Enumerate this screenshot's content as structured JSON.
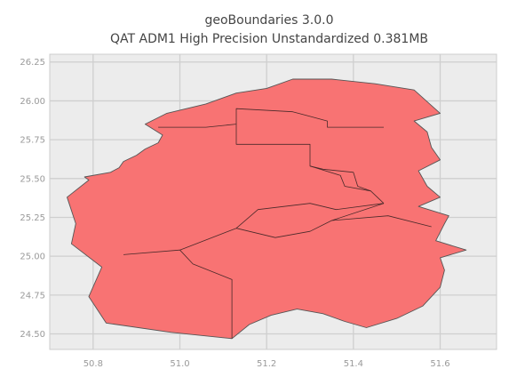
{
  "chart_data": {
    "type": "map",
    "title": "geoBoundaries 3.0.0",
    "subtitle": "QAT ADM1 High Precision Unstandardized 0.381MB",
    "xlim": [
      50.7,
      51.73
    ],
    "ylim": [
      24.4,
      26.3
    ],
    "x_ticks": [
      50.8,
      51.0,
      51.2,
      51.4,
      51.6
    ],
    "y_ticks": [
      24.5,
      24.75,
      25.0,
      25.25,
      25.5,
      25.75,
      26.0,
      26.25
    ],
    "x_tick_labels": [
      "50.8",
      "51.0",
      "51.2",
      "51.4",
      "51.6"
    ],
    "y_tick_labels": [
      "24.50",
      "24.75",
      "25.00",
      "25.25",
      "25.50",
      "25.75",
      "26.00",
      "26.25"
    ],
    "grid": true,
    "fill_color": "#f87373",
    "edge_color": "#555555",
    "background_color": "#ececec",
    "outline": [
      [
        51.12,
        24.47
      ],
      [
        50.98,
        24.51
      ],
      [
        50.83,
        24.57
      ],
      [
        50.79,
        24.74
      ],
      [
        50.82,
        24.93
      ],
      [
        50.75,
        25.08
      ],
      [
        50.76,
        25.21
      ],
      [
        50.74,
        25.38
      ],
      [
        50.79,
        25.49
      ],
      [
        50.78,
        25.51
      ],
      [
        50.84,
        25.54
      ],
      [
        50.86,
        25.57
      ],
      [
        50.87,
        25.61
      ],
      [
        50.9,
        25.65
      ],
      [
        50.92,
        25.69
      ],
      [
        50.95,
        25.73
      ],
      [
        50.96,
        25.78
      ],
      [
        50.92,
        25.85
      ],
      [
        50.97,
        25.92
      ],
      [
        51.06,
        25.98
      ],
      [
        51.13,
        26.05
      ],
      [
        51.2,
        26.08
      ],
      [
        51.26,
        26.14
      ],
      [
        51.35,
        26.14
      ],
      [
        51.45,
        26.11
      ],
      [
        51.54,
        26.07
      ],
      [
        51.58,
        25.97
      ],
      [
        51.6,
        25.92
      ],
      [
        51.54,
        25.87
      ],
      [
        51.57,
        25.8
      ],
      [
        51.58,
        25.7
      ],
      [
        51.6,
        25.62
      ],
      [
        51.55,
        25.55
      ],
      [
        51.57,
        25.45
      ],
      [
        51.6,
        25.38
      ],
      [
        51.55,
        25.32
      ],
      [
        51.62,
        25.26
      ],
      [
        51.61,
        25.21
      ],
      [
        51.59,
        25.1
      ],
      [
        51.66,
        25.04
      ],
      [
        51.6,
        24.99
      ],
      [
        51.61,
        24.91
      ],
      [
        51.6,
        24.8
      ],
      [
        51.56,
        24.68
      ],
      [
        51.5,
        24.6
      ],
      [
        51.43,
        24.54
      ],
      [
        51.38,
        24.58
      ],
      [
        51.33,
        24.63
      ],
      [
        51.27,
        24.66
      ],
      [
        51.21,
        24.62
      ],
      [
        51.16,
        24.56
      ],
      [
        51.12,
        24.47
      ]
    ],
    "boundaries": [
      [
        [
          50.95,
          25.83
        ],
        [
          51.06,
          25.83
        ],
        [
          51.13,
          25.85
        ],
        [
          51.13,
          25.95
        ],
        [
          51.26,
          25.93
        ],
        [
          51.3,
          25.9
        ],
        [
          51.34,
          25.87
        ],
        [
          51.34,
          25.83
        ],
        [
          51.47,
          25.83
        ]
      ],
      [
        [
          51.13,
          25.85
        ],
        [
          51.13,
          25.72
        ],
        [
          51.3,
          25.72
        ],
        [
          51.3,
          25.58
        ],
        [
          51.37,
          25.52
        ],
        [
          51.38,
          25.45
        ],
        [
          51.44,
          25.42
        ],
        [
          51.47,
          25.34
        ]
      ],
      [
        [
          51.3,
          25.58
        ],
        [
          51.33,
          25.56
        ],
        [
          51.4,
          25.54
        ],
        [
          51.41,
          25.45
        ],
        [
          51.44,
          25.42
        ]
      ],
      [
        [
          51.47,
          25.34
        ],
        [
          51.36,
          25.3
        ],
        [
          51.3,
          25.34
        ],
        [
          51.18,
          25.3
        ],
        [
          51.13,
          25.18
        ],
        [
          51.0,
          25.04
        ],
        [
          50.87,
          25.01
        ]
      ],
      [
        [
          51.0,
          25.04
        ],
        [
          51.03,
          24.95
        ],
        [
          51.12,
          24.85
        ],
        [
          51.12,
          24.47
        ]
      ],
      [
        [
          51.13,
          25.18
        ],
        [
          51.22,
          25.12
        ],
        [
          51.3,
          25.16
        ],
        [
          51.35,
          25.23
        ],
        [
          51.47,
          25.34
        ]
      ],
      [
        [
          51.35,
          25.23
        ],
        [
          51.48,
          25.26
        ],
        [
          51.58,
          25.19
        ]
      ]
    ]
  }
}
